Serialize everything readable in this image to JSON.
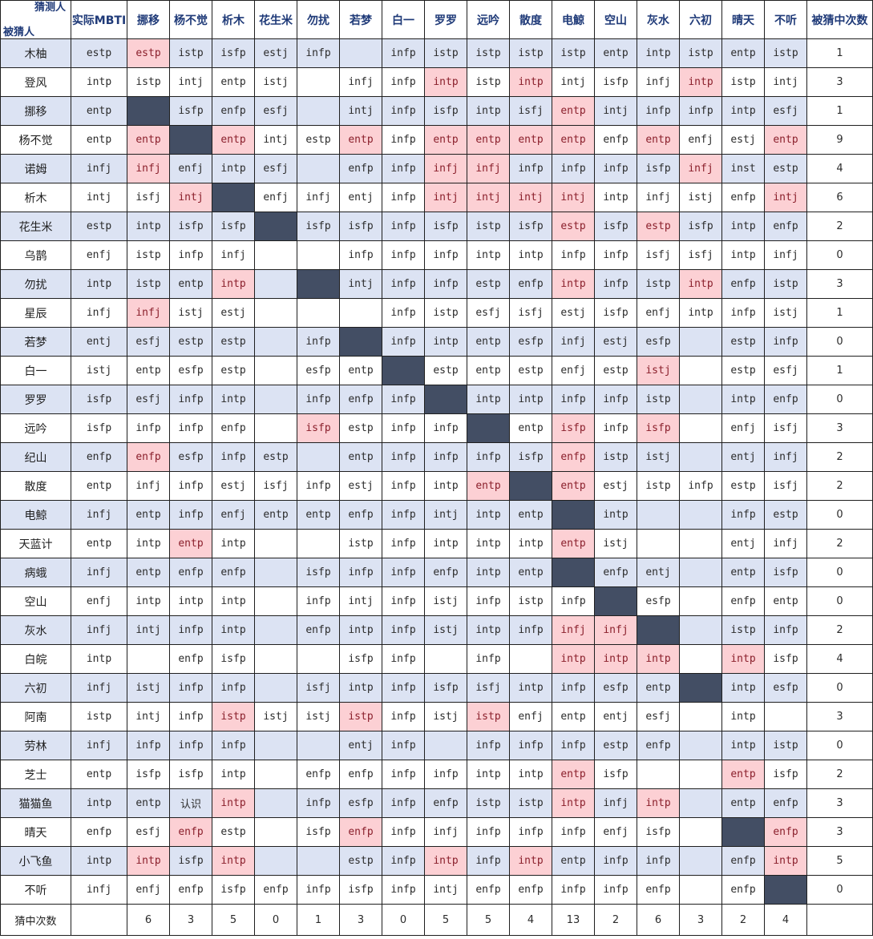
{
  "corner": {
    "guesser_label": "猜测人",
    "target_label": "被猜人"
  },
  "header": {
    "actual_label": "实际MBTI",
    "guessers": [
      "挪移",
      "杨不觉",
      "析木",
      "花生米",
      "勿扰",
      "若梦",
      "白一",
      "罗罗",
      "远吟",
      "散度",
      "电鯨",
      "空山",
      "灰水",
      "六初",
      "晴天",
      "不听"
    ],
    "count_label": "被猜中次数"
  },
  "colors": {
    "band": "#dce3f3",
    "self_cell": "#434e64",
    "correct_guess": "#fcd0d4",
    "header_text": "#1f3a78"
  },
  "rows": [
    {
      "name": "木柚",
      "actual": "estp",
      "guesses": [
        "estp",
        "istp",
        "isfp",
        "estj",
        "infp",
        "",
        "infp",
        "istp",
        "istp",
        "istp",
        "istp",
        "entp",
        "intp",
        "istp",
        "entp",
        "istp"
      ],
      "count": "1",
      "self": -1,
      "hits": [
        0
      ]
    },
    {
      "name": "登风",
      "actual": "intp",
      "guesses": [
        "istp",
        "intj",
        "entp",
        "istj",
        "",
        "infj",
        "infp",
        "intp",
        "istp",
        "intp",
        "intj",
        "isfp",
        "infj",
        "intp",
        "istp",
        "intj"
      ],
      "count": "3",
      "self": -1,
      "hits": [
        7,
        9,
        13
      ]
    },
    {
      "name": "挪移",
      "actual": "entp",
      "guesses": [
        "",
        "isfp",
        "enfp",
        "esfj",
        "",
        "intj",
        "infp",
        "isfp",
        "intp",
        "isfj",
        "entp",
        "intj",
        "infp",
        "infp",
        "intp",
        "esfj"
      ],
      "count": "1",
      "self": 0,
      "hits": [
        10
      ]
    },
    {
      "name": "杨不觉",
      "actual": "entp",
      "guesses": [
        "entp",
        "",
        "entp",
        "intj",
        "estp",
        "entp",
        "infp",
        "entp",
        "entp",
        "entp",
        "entp",
        "enfp",
        "entp",
        "enfj",
        "estj",
        "entp"
      ],
      "count": "9",
      "self": 1,
      "hits": [
        0,
        2,
        5,
        7,
        8,
        9,
        10,
        12,
        15
      ]
    },
    {
      "name": "诺姆",
      "actual": "infj",
      "guesses": [
        "infj",
        "enfj",
        "intp",
        "esfj",
        "",
        "enfp",
        "infp",
        "infj",
        "infj",
        "infp",
        "infp",
        "infp",
        "isfp",
        "infj",
        "inst",
        "estp"
      ],
      "count": "4",
      "self": -1,
      "hits": [
        0,
        7,
        8,
        13
      ]
    },
    {
      "name": "析木",
      "actual": "intj",
      "guesses": [
        "isfj",
        "intj",
        "",
        "enfj",
        "infj",
        "entj",
        "infp",
        "intj",
        "intj",
        "intj",
        "intj",
        "intp",
        "infj",
        "istj",
        "enfp",
        "intj"
      ],
      "count": "6",
      "self": 2,
      "hits": [
        1,
        7,
        8,
        9,
        10,
        15
      ]
    },
    {
      "name": "花生米",
      "actual": "estp",
      "guesses": [
        "intp",
        "isfp",
        "isfp",
        "",
        "isfp",
        "isfp",
        "infp",
        "isfp",
        "istp",
        "isfp",
        "estp",
        "isfp",
        "estp",
        "isfp",
        "intp",
        "enfp"
      ],
      "count": "2",
      "self": 3,
      "hits": [
        10,
        12
      ]
    },
    {
      "name": "乌鹊",
      "actual": "enfj",
      "guesses": [
        "istp",
        "infp",
        "infj",
        "",
        "",
        "infp",
        "infp",
        "infp",
        "intp",
        "intp",
        "infp",
        "infp",
        "isfj",
        "isfj",
        "intp",
        "infj"
      ],
      "count": "0",
      "self": -1,
      "hits": []
    },
    {
      "name": "勿扰",
      "actual": "intp",
      "guesses": [
        "istp",
        "entp",
        "intp",
        "",
        "",
        "intj",
        "infp",
        "infp",
        "estp",
        "enfp",
        "intp",
        "infp",
        "istp",
        "intp",
        "enfp",
        "istp"
      ],
      "count": "3",
      "self": 4,
      "hits": [
        2,
        10,
        13
      ]
    },
    {
      "name": "星辰",
      "actual": "infj",
      "guesses": [
        "infj",
        "istj",
        "estj",
        "",
        "",
        "",
        "infp",
        "istp",
        "esfj",
        "isfj",
        "estj",
        "isfp",
        "enfj",
        "intp",
        "infp",
        "istj"
      ],
      "count": "1",
      "self": -1,
      "hits": [
        0
      ]
    },
    {
      "name": "若梦",
      "actual": "entj",
      "guesses": [
        "esfj",
        "estp",
        "estp",
        "",
        "infp",
        "",
        "infp",
        "intp",
        "entp",
        "esfp",
        "infj",
        "estj",
        "esfp",
        "",
        "estp",
        "infp"
      ],
      "count": "0",
      "self": 5,
      "hits": []
    },
    {
      "name": "白一",
      "actual": "istj",
      "guesses": [
        "entp",
        "esfp",
        "estp",
        "",
        "esfp",
        "entp",
        "",
        "estp",
        "entp",
        "estp",
        "enfj",
        "estp",
        "istj",
        "",
        "estp",
        "esfj"
      ],
      "count": "1",
      "self": 6,
      "hits": [
        12
      ]
    },
    {
      "name": "罗罗",
      "actual": "isfp",
      "guesses": [
        "esfj",
        "infp",
        "intp",
        "",
        "infp",
        "enfp",
        "infp",
        "",
        "intp",
        "intp",
        "infp",
        "infp",
        "istp",
        "",
        "intp",
        "enfp"
      ],
      "count": "0",
      "self": 7,
      "hits": []
    },
    {
      "name": "远吟",
      "actual": "isfp",
      "guesses": [
        "infp",
        "infp",
        "enfp",
        "",
        "isfp",
        "estp",
        "infp",
        "infp",
        "",
        "entp",
        "isfp",
        "infp",
        "isfp",
        "",
        "enfj",
        "isfj"
      ],
      "count": "3",
      "self": 8,
      "hits": [
        4,
        10,
        12
      ]
    },
    {
      "name": "纪山",
      "actual": "enfp",
      "guesses": [
        "enfp",
        "esfp",
        "infp",
        "estp",
        "",
        "entp",
        "infp",
        "infp",
        "infp",
        "isfp",
        "enfp",
        "istp",
        "istj",
        "",
        "entj",
        "infj"
      ],
      "count": "2",
      "self": -1,
      "hits": [
        0,
        10
      ]
    },
    {
      "name": "散度",
      "actual": "entp",
      "guesses": [
        "infj",
        "infp",
        "estj",
        "isfj",
        "infp",
        "estj",
        "infp",
        "intp",
        "entp",
        "",
        "entp",
        "estj",
        "istp",
        "infp",
        "estp",
        "isfj"
      ],
      "count": "2",
      "self": 9,
      "hits": [
        8,
        10
      ]
    },
    {
      "name": "电鯨",
      "actual": "infj",
      "guesses": [
        "entp",
        "infp",
        "enfj",
        "entp",
        "entp",
        "enfp",
        "infp",
        "intj",
        "intp",
        "entp",
        "",
        "intp",
        "",
        "",
        "infp",
        "estp"
      ],
      "count": "0",
      "self": 10,
      "hits": []
    },
    {
      "name": "天蓝计",
      "actual": "entp",
      "guesses": [
        "intp",
        "entp",
        "intp",
        "",
        "",
        "istp",
        "infp",
        "intp",
        "intp",
        "intp",
        "entp",
        "istj",
        "",
        "",
        "entj",
        "infj"
      ],
      "count": "2",
      "self": -1,
      "hits": [
        1,
        10
      ]
    },
    {
      "name": "病蛾",
      "actual": "infj",
      "guesses": [
        "entp",
        "enfp",
        "enfp",
        "",
        "isfp",
        "infp",
        "infp",
        "enfp",
        "intp",
        "entp",
        "",
        "enfp",
        "entj",
        "",
        "entp",
        "isfp"
      ],
      "count": "0",
      "self": 10,
      "hits": []
    },
    {
      "name": "空山",
      "actual": "enfj",
      "guesses": [
        "intp",
        "intp",
        "intp",
        "",
        "infp",
        "intj",
        "infp",
        "istj",
        "infp",
        "istp",
        "infp",
        "",
        "esfp",
        "",
        "enfp",
        "entp"
      ],
      "count": "0",
      "self": 11,
      "hits": []
    },
    {
      "name": "灰水",
      "actual": "infj",
      "guesses": [
        "intj",
        "infp",
        "intp",
        "",
        "enfp",
        "intp",
        "infp",
        "istj",
        "intp",
        "infp",
        "infj",
        "infj",
        "",
        "",
        "istp",
        "infp"
      ],
      "count": "2",
      "self": 12,
      "hits": [
        10,
        11
      ]
    },
    {
      "name": "白皖",
      "actual": "intp",
      "guesses": [
        "",
        "enfp",
        "isfp",
        "",
        "",
        "isfp",
        "infp",
        "",
        "infp",
        "",
        "intp",
        "intp",
        "intp",
        "",
        "intp",
        "isfp"
      ],
      "count": "4",
      "self": -1,
      "hits": [
        10,
        11,
        12,
        14
      ]
    },
    {
      "name": "六初",
      "actual": "infj",
      "guesses": [
        "istj",
        "infp",
        "infp",
        "",
        "isfj",
        "intp",
        "infp",
        "isfp",
        "isfj",
        "intp",
        "infp",
        "esfp",
        "entp",
        "",
        "intp",
        "esfp"
      ],
      "count": "0",
      "self": 13,
      "hits": []
    },
    {
      "name": "阿南",
      "actual": "istp",
      "guesses": [
        "intj",
        "infp",
        "istp",
        "istj",
        "istj",
        "istp",
        "infp",
        "istj",
        "istp",
        "enfj",
        "entp",
        "entj",
        "esfj",
        "",
        "intp",
        ""
      ],
      "count": "3",
      "self": -1,
      "hits": [
        2,
        5,
        8
      ]
    },
    {
      "name": "劳林",
      "actual": "infj",
      "guesses": [
        "infp",
        "infp",
        "infp",
        "",
        "",
        "entj",
        "infp",
        "",
        "infp",
        "infp",
        "infp",
        "estp",
        "enfp",
        "",
        "intp",
        "istp"
      ],
      "count": "0",
      "self": -1,
      "hits": []
    },
    {
      "name": "芝士",
      "actual": "entp",
      "guesses": [
        "isfp",
        "isfp",
        "intp",
        "",
        "enfp",
        "enfp",
        "infp",
        "infp",
        "intp",
        "intp",
        "entp",
        "isfp",
        "",
        "",
        "entp",
        "isfp"
      ],
      "count": "2",
      "self": -1,
      "hits": [
        10,
        14
      ]
    },
    {
      "name": "猫猫鱼",
      "actual": "intp",
      "guesses": [
        "entp",
        "认识",
        "intp",
        "",
        "infp",
        "esfp",
        "infp",
        "enfp",
        "istp",
        "istp",
        "intp",
        "infj",
        "intp",
        "",
        "entp",
        "enfp"
      ],
      "count": "3",
      "self": -1,
      "hits": [
        2,
        10,
        12
      ]
    },
    {
      "name": "晴天",
      "actual": "enfp",
      "guesses": [
        "esfj",
        "enfp",
        "estp",
        "",
        "isfp",
        "enfp",
        "infp",
        "infj",
        "infp",
        "infp",
        "infp",
        "enfj",
        "isfp",
        "",
        "",
        "enfp"
      ],
      "count": "3",
      "self": 14,
      "hits": [
        1,
        5,
        15
      ]
    },
    {
      "name": "小飞鱼",
      "actual": "intp",
      "guesses": [
        "intp",
        "isfp",
        "intp",
        "",
        "",
        "estp",
        "infp",
        "intp",
        "infp",
        "intp",
        "entp",
        "infp",
        "infp",
        "",
        "enfp",
        "intp"
      ],
      "count": "5",
      "self": -1,
      "hits": [
        0,
        2,
        7,
        9,
        15
      ]
    },
    {
      "name": "不听",
      "actual": "infj",
      "guesses": [
        "enfj",
        "enfp",
        "isfp",
        "enfp",
        "infp",
        "isfp",
        "infp",
        "intj",
        "enfp",
        "enfp",
        "infp",
        "infp",
        "enfp",
        "",
        "enfp",
        ""
      ],
      "count": "0",
      "self": 15,
      "hits": []
    }
  ],
  "footer": {
    "label": "猜中次数",
    "counts": [
      "6",
      "3",
      "5",
      "0",
      "1",
      "3",
      "0",
      "5",
      "5",
      "4",
      "13",
      "2",
      "6",
      "3",
      "2",
      "4"
    ]
  }
}
